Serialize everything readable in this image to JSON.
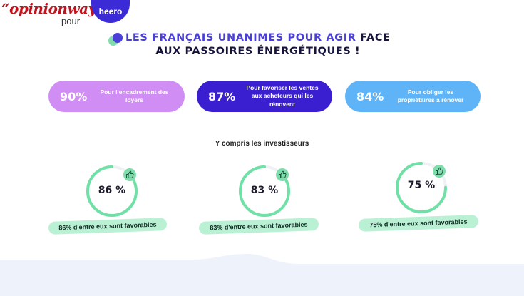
{
  "header": {
    "opinionway_logo": "“opinionway",
    "pour_label": "pour",
    "heero_logo": "heero"
  },
  "title": {
    "accent_text": "LES FRANÇAIS UNANIMES POUR AGIR",
    "line1_rest": " FACE",
    "line2": "AUX PASSOIRES ÉNERGÉTIQUES !"
  },
  "stats": [
    {
      "percent": "90%",
      "label": "Pour l'encadrement des loyers",
      "color": "#d08ef4"
    },
    {
      "percent": "87%",
      "label": "Pour favoriser les ventes aux acheteurs qui les rénovent",
      "color": "#3a1fd0"
    },
    {
      "percent": "84%",
      "label": "Pour obliger les propriétaires à rénover",
      "color": "#5fb3f7"
    }
  ],
  "investors": {
    "subtitle": "Y compris les investisseurs",
    "gauges": [
      {
        "value_label": "86 %",
        "fraction": 0.86,
        "caption": "86% d'entre eux sont favorables"
      },
      {
        "value_label": "83 %",
        "fraction": 0.83,
        "caption": "83% d'entre eux sont favorables"
      },
      {
        "value_label": "75 %",
        "fraction": 0.75,
        "caption": "75% d'entre eux sont favorables"
      }
    ]
  },
  "colors": {
    "accent": "#4a3fd9",
    "gauge_green": "#6fe0a6",
    "gauge_track": "#eef2f5",
    "thumb_badge": "#7fdcac",
    "caption_bg": "#baf0d3"
  },
  "icons": {
    "title_decoration": "dots-icon",
    "gauge_badge": "thumbs-up-icon"
  }
}
